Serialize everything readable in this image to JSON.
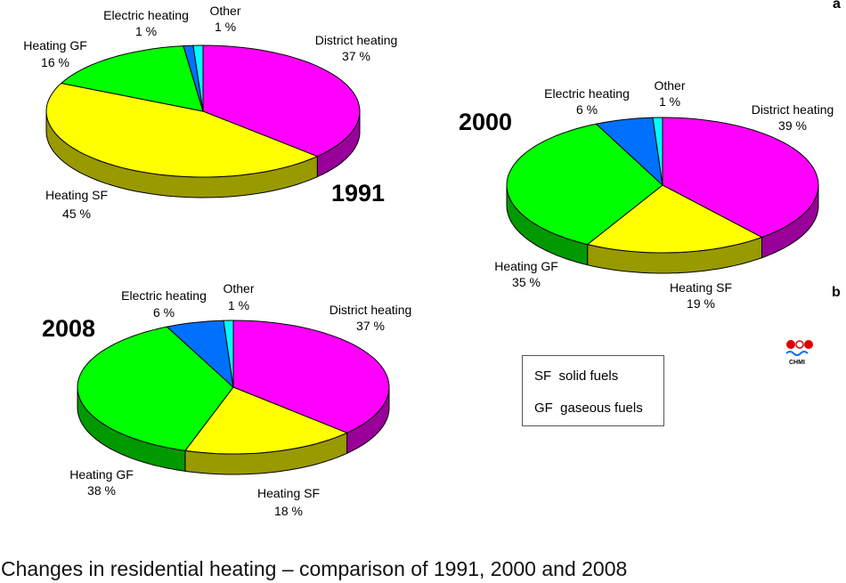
{
  "colors": {
    "district": "#ff00ff",
    "district_side": "#990099",
    "sf": "#ffff00",
    "sf_side": "#999900",
    "gf": "#00ff00",
    "gf_side": "#009900",
    "electric": "#0070ff",
    "electric_side": "#0044a0",
    "other": "#00ffff",
    "other_side": "#00a0a0"
  },
  "chart_data": [
    {
      "type": "pie",
      "title": "1991",
      "series": [
        {
          "label": "District heating",
          "percent_label": "37 %",
          "value": 37,
          "color_key": "district"
        },
        {
          "label": "Heating SF",
          "percent_label": "45 %",
          "value": 45,
          "color_key": "sf"
        },
        {
          "label": "Heating GF",
          "percent_label": "16 %",
          "value": 16,
          "color_key": "gf"
        },
        {
          "label": "Electric heating",
          "percent_label": "1 %",
          "value": 1,
          "color_key": "electric"
        },
        {
          "label": "Other",
          "percent_label": "1 %",
          "value": 1,
          "color_key": "other"
        }
      ]
    },
    {
      "type": "pie",
      "title": "2000",
      "series": [
        {
          "label": "District heating",
          "percent_label": "39 %",
          "value": 39,
          "color_key": "district"
        },
        {
          "label": "Heating SF",
          "percent_label": "19 %",
          "value": 19,
          "color_key": "sf"
        },
        {
          "label": "Heating GF",
          "percent_label": "35 %",
          "value": 35,
          "color_key": "gf"
        },
        {
          "label": "Electric heating",
          "percent_label": "6 %",
          "value": 6,
          "color_key": "electric"
        },
        {
          "label": "Other",
          "percent_label": "1 %",
          "value": 1,
          "color_key": "other"
        }
      ]
    },
    {
      "type": "pie",
      "title": "2008",
      "series": [
        {
          "label": "District heating",
          "percent_label": "37 %",
          "value": 37,
          "color_key": "district"
        },
        {
          "label": "Heating SF",
          "percent_label": "18 %",
          "value": 18,
          "color_key": "sf"
        },
        {
          "label": "Heating GF",
          "percent_label": "38 %",
          "value": 38,
          "color_key": "gf"
        },
        {
          "label": "Electric heating",
          "percent_label": "6 %",
          "value": 6,
          "color_key": "electric"
        },
        {
          "label": "Other",
          "percent_label": "1 %",
          "value": 1,
          "color_key": "other"
        }
      ]
    }
  ],
  "panel_labels": {
    "a": "a",
    "b": "b"
  },
  "legend": {
    "sf": "SF  solid fuels",
    "gf": "GF  gaseous fuels"
  },
  "logo_text": "CHMI",
  "caption": "Changes in residential heating – comparison of 1991, 2000 and 2008"
}
